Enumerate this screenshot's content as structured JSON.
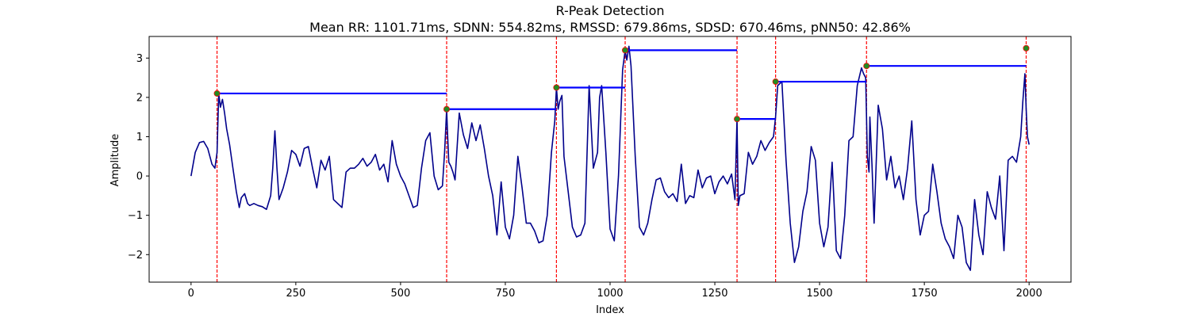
{
  "chart_data": {
    "type": "line",
    "title": "R-Peak Detection",
    "subtitle": "Mean RR: 1101.71ms, SDNN: 554.82ms, RMSSD: 679.86ms, SDSD: 670.46ms, pNN50: 42.86%",
    "xlabel": "Index",
    "ylabel": "Amplitude",
    "xlim": [
      -100,
      2100
    ],
    "ylim": [
      -2.7,
      3.55
    ],
    "xticks": [
      0,
      250,
      500,
      750,
      1000,
      1250,
      1500,
      1750,
      2000
    ],
    "yticks": [
      -2,
      -1,
      0,
      1,
      2,
      3
    ],
    "grid": false,
    "colors": {
      "signal": "#00008b",
      "peak_line": "#ff0000",
      "rr_interval": "#0000ff",
      "peak_marker_fill": "#228b22",
      "peak_marker_edge": "#ff0000"
    },
    "signal": {
      "x": [
        0,
        10,
        20,
        30,
        40,
        50,
        57,
        62,
        66,
        70,
        75,
        80,
        85,
        92,
        100,
        108,
        115,
        120,
        128,
        135,
        140,
        150,
        160,
        170,
        180,
        190,
        195,
        200,
        205,
        210,
        220,
        230,
        240,
        250,
        260,
        270,
        280,
        290,
        300,
        310,
        320,
        330,
        340,
        350,
        360,
        370,
        380,
        390,
        400,
        410,
        420,
        430,
        440,
        450,
        460,
        470,
        480,
        490,
        500,
        510,
        520,
        530,
        540,
        550,
        560,
        570,
        580,
        590,
        600,
        605,
        610,
        612,
        615,
        620,
        625,
        630,
        640,
        650,
        660,
        670,
        680,
        690,
        700,
        710,
        720,
        730,
        740,
        750,
        760,
        770,
        780,
        790,
        800,
        810,
        820,
        830,
        840,
        850,
        860,
        868,
        872,
        876,
        880,
        885,
        890,
        900,
        910,
        920,
        930,
        940,
        950,
        960,
        970,
        975,
        980,
        990,
        1000,
        1010,
        1020,
        1030,
        1036,
        1040,
        1045,
        1050,
        1060,
        1070,
        1080,
        1090,
        1100,
        1110,
        1120,
        1130,
        1140,
        1150,
        1160,
        1170,
        1180,
        1190,
        1200,
        1210,
        1220,
        1230,
        1240,
        1250,
        1260,
        1270,
        1280,
        1290,
        1298,
        1303,
        1306,
        1310,
        1320,
        1330,
        1340,
        1350,
        1360,
        1370,
        1380,
        1390,
        1395,
        1400,
        1410,
        1420,
        1430,
        1440,
        1450,
        1460,
        1470,
        1480,
        1490,
        1500,
        1510,
        1520,
        1530,
        1540,
        1550,
        1560,
        1570,
        1580,
        1590,
        1600,
        1605,
        1610,
        1614,
        1618,
        1620,
        1625,
        1630,
        1640,
        1650,
        1660,
        1670,
        1680,
        1690,
        1700,
        1710,
        1720,
        1730,
        1740,
        1750,
        1760,
        1770,
        1780,
        1790,
        1800,
        1810,
        1820,
        1830,
        1840,
        1850,
        1860,
        1870,
        1880,
        1890,
        1900,
        1910,
        1920,
        1930,
        1940,
        1950,
        1960,
        1970,
        1980,
        1985,
        1990,
        1993,
        1996,
        2000
      ],
      "y": [
        0.0,
        0.6,
        0.85,
        0.88,
        0.7,
        0.3,
        0.2,
        0.6,
        2.1,
        1.75,
        1.95,
        1.6,
        1.2,
        0.8,
        0.2,
        -0.4,
        -0.8,
        -0.55,
        -0.45,
        -0.7,
        -0.75,
        -0.7,
        -0.75,
        -0.78,
        -0.85,
        -0.5,
        0.2,
        1.15,
        0.2,
        -0.6,
        -0.3,
        0.1,
        0.65,
        0.55,
        0.25,
        0.7,
        0.75,
        0.2,
        -0.3,
        0.4,
        0.15,
        0.5,
        -0.6,
        -0.7,
        -0.8,
        0.1,
        0.2,
        0.2,
        0.3,
        0.45,
        0.25,
        0.35,
        0.55,
        0.15,
        0.3,
        -0.15,
        0.9,
        0.3,
        0.0,
        -0.2,
        -0.5,
        -0.8,
        -0.75,
        0.2,
        0.9,
        1.1,
        0.0,
        -0.35,
        -0.25,
        0.6,
        1.7,
        1.1,
        0.35,
        0.25,
        0.1,
        -0.1,
        1.6,
        1.05,
        0.7,
        1.35,
        0.9,
        1.3,
        0.7,
        0.0,
        -0.5,
        -1.5,
        -0.15,
        -1.3,
        -1.6,
        -1.0,
        0.5,
        -0.3,
        -1.2,
        -1.2,
        -1.4,
        -1.7,
        -1.65,
        -1.0,
        0.6,
        1.4,
        2.25,
        1.7,
        1.9,
        2.05,
        0.5,
        -0.4,
        -1.3,
        -1.55,
        -1.5,
        -1.2,
        2.3,
        0.2,
        0.6,
        2.0,
        2.3,
        0.6,
        -1.35,
        -1.65,
        0.0,
        2.7,
        3.2,
        2.95,
        3.3,
        2.8,
        0.5,
        -1.3,
        -1.5,
        -1.2,
        -0.6,
        -0.1,
        -0.05,
        -0.4,
        -0.55,
        -0.45,
        -0.65,
        0.3,
        -0.7,
        -0.5,
        -0.55,
        0.15,
        -0.3,
        -0.05,
        0.0,
        -0.45,
        -0.15,
        0.0,
        -0.2,
        0.05,
        -0.6,
        1.45,
        -0.75,
        -0.5,
        -0.45,
        0.6,
        0.3,
        0.5,
        0.9,
        0.65,
        0.85,
        1.0,
        1.5,
        2.3,
        2.4,
        0.4,
        -1.2,
        -2.2,
        -1.8,
        -0.9,
        -0.4,
        0.75,
        0.4,
        -1.2,
        -1.8,
        -1.3,
        0.35,
        -1.9,
        -2.1,
        -1.0,
        0.9,
        1.0,
        2.3,
        2.75,
        2.6,
        2.5,
        0.5,
        0.1,
        1.5,
        0.3,
        -1.2,
        1.8,
        1.2,
        -0.1,
        0.5,
        -0.3,
        0.0,
        -0.6,
        0.2,
        1.4,
        -0.6,
        -1.5,
        -1.0,
        -0.9,
        0.3,
        -0.4,
        -1.2,
        -1.6,
        -1.8,
        -2.1,
        -1.0,
        -1.3,
        -2.2,
        -2.4,
        -0.6,
        -1.5,
        -2.0,
        -0.4,
        -0.8,
        -1.1,
        0.0,
        -1.9,
        0.4,
        0.5,
        0.35,
        1.0,
        1.9,
        2.6,
        1.7,
        1.0,
        0.8
      ]
    },
    "peaks": [
      {
        "x": 62,
        "y": 2.1
      },
      {
        "x": 610,
        "y": 1.7
      },
      {
        "x": 872,
        "y": 2.25
      },
      {
        "x": 1036,
        "y": 3.2
      },
      {
        "x": 1303,
        "y": 1.45
      },
      {
        "x": 1395,
        "y": 2.4
      },
      {
        "x": 1612,
        "y": 2.8
      },
      {
        "x": 1993,
        "y": 3.25
      }
    ],
    "rr_intervals": [
      {
        "x_start": 62,
        "x_end": 610,
        "y": 2.1
      },
      {
        "x_start": 610,
        "x_end": 872,
        "y": 1.7
      },
      {
        "x_start": 872,
        "x_end": 1036,
        "y": 2.25
      },
      {
        "x_start": 1036,
        "x_end": 1303,
        "y": 3.2
      },
      {
        "x_start": 1303,
        "x_end": 1395,
        "y": 1.45
      },
      {
        "x_start": 1395,
        "x_end": 1612,
        "y": 2.4
      },
      {
        "x_start": 1612,
        "x_end": 1993,
        "y": 2.8
      }
    ]
  }
}
